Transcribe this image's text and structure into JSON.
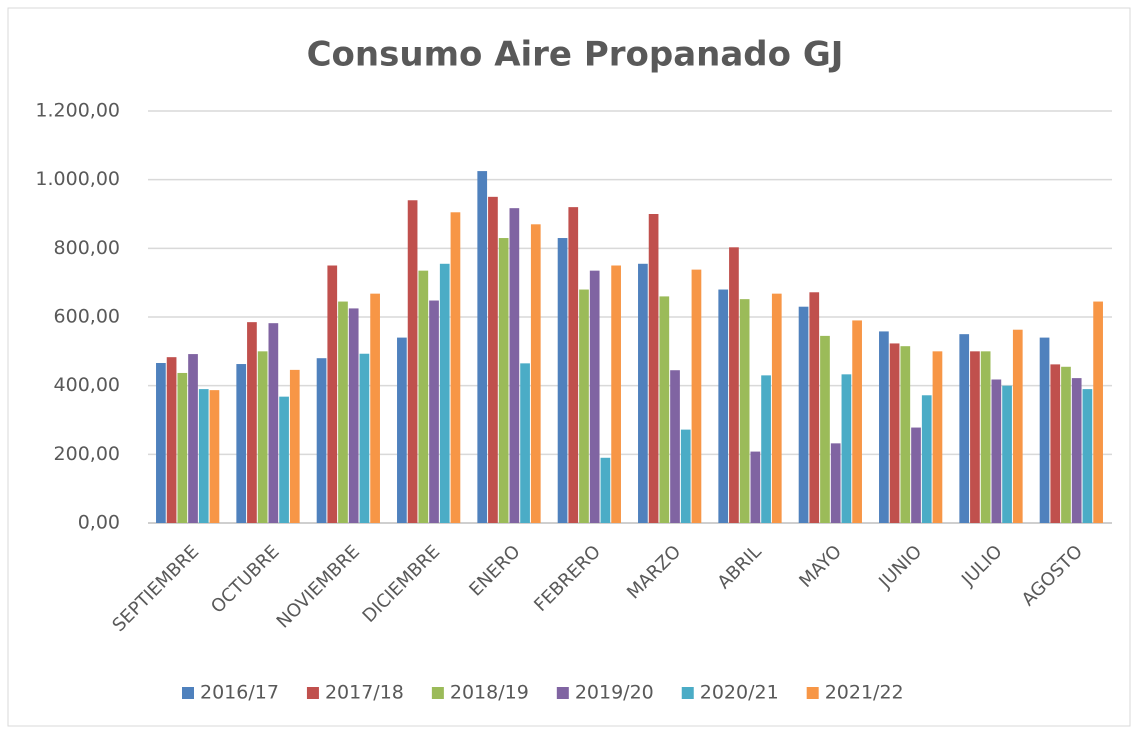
{
  "chart_data": {
    "type": "bar",
    "title": "Consumo Aire Propanado GJ",
    "categories": [
      "SEPTIEMBRE",
      "OCTUBRE",
      "NOVIEMBRE",
      "DICIEMBRE",
      "ENERO",
      "FEBRERO",
      "MARZO",
      "ABRIL",
      "MAYO",
      "JUNIO",
      "JULIO",
      "AGOSTO"
    ],
    "series": [
      {
        "name": "2016/17",
        "color": "#4f81bd",
        "values": [
          466,
          463,
          480,
          540,
          1025,
          830,
          755,
          680,
          630,
          558,
          550,
          540
        ]
      },
      {
        "name": "2017/18",
        "color": "#c0504d",
        "values": [
          483,
          585,
          750,
          940,
          950,
          920,
          900,
          803,
          672,
          523,
          500,
          462
        ]
      },
      {
        "name": "2018/19",
        "color": "#9bbb59",
        "values": [
          437,
          500,
          645,
          735,
          830,
          680,
          660,
          652,
          545,
          515,
          500,
          455
        ]
      },
      {
        "name": "2019/20",
        "color": "#8064a2",
        "values": [
          492,
          582,
          625,
          648,
          917,
          735,
          445,
          208,
          232,
          278,
          418,
          422
        ]
      },
      {
        "name": "2020/21",
        "color": "#4bacc6",
        "values": [
          390,
          368,
          493,
          755,
          465,
          190,
          272,
          430,
          433,
          372,
          400,
          390
        ]
      },
      {
        "name": "2021/22",
        "color": "#f79646",
        "values": [
          387,
          446,
          668,
          905,
          870,
          750,
          738,
          668,
          590,
          500,
          563,
          645
        ]
      }
    ],
    "ylim": [
      0,
      1200
    ],
    "yticks": [
      {
        "value": 0,
        "label": "0,00"
      },
      {
        "value": 200,
        "label": "200,00"
      },
      {
        "value": 400,
        "label": "400,00"
      },
      {
        "value": 600,
        "label": "600,00"
      },
      {
        "value": 800,
        "label": "800,00"
      },
      {
        "value": 1000,
        "label": "1.000,00"
      },
      {
        "value": 1200,
        "label": "1.200,00"
      }
    ],
    "grid": true,
    "legend": "bottom"
  }
}
